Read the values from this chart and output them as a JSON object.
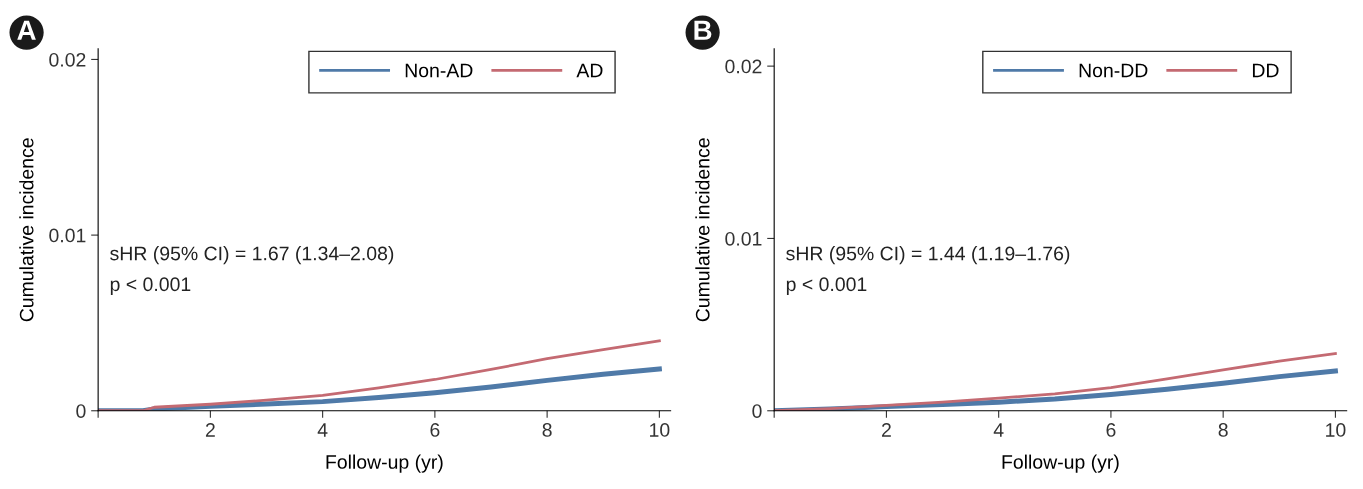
{
  "chart_data": [
    {
      "type": "line",
      "xlabel": "Follow-up (yr)",
      "ylabel": "Cumulative incidence",
      "annotations": [
        "A",
        "sHR (95% CI) = 1.67 (1.34–2.08)",
        "p < 0.001"
      ],
      "x": [
        0,
        0.8,
        1,
        2,
        3,
        4,
        5,
        6,
        7,
        8,
        9,
        10
      ],
      "series": [
        {
          "name": "Non-AD",
          "color": "#4f7aa8",
          "values": [
            0,
            0,
            0.0001,
            0.00026,
            0.00038,
            0.00052,
            0.00075,
            0.00102,
            0.00135,
            0.00173,
            0.00208,
            0.00238
          ]
        },
        {
          "name": "AD",
          "color": "#c46a72",
          "values": [
            0,
            0,
            0.0002,
            0.00037,
            0.0006,
            0.00087,
            0.0013,
            0.00178,
            0.00235,
            0.00297,
            0.00348,
            0.00398
          ]
        }
      ],
      "xlim": [
        0,
        10.2
      ],
      "ylim": [
        0,
        0.0206
      ],
      "xticks": [
        {
          "value": 0,
          "label": null
        },
        2,
        4,
        6,
        8,
        10
      ],
      "yticks": [
        0,
        0.01,
        0.02
      ],
      "legend": "top right",
      "grid": false,
      "line_style": "solid",
      "marker": "none"
    },
    {
      "type": "line",
      "xlabel": "Follow-up (yr)",
      "ylabel": "Cumulative incidence",
      "annotations": [
        "B",
        "sHR (95% CI) = 1.44 (1.19–1.76)",
        "p < 0.001"
      ],
      "x": [
        0,
        1,
        2,
        3,
        4,
        5,
        6,
        7,
        8,
        9,
        10
      ],
      "series": [
        {
          "name": "Non-DD",
          "color": "#4f7aa8",
          "values": [
            0,
            0.0001,
            0.00024,
            0.00036,
            0.0005,
            0.00068,
            0.00094,
            0.00125,
            0.0016,
            0.00198,
            0.00231
          ]
        },
        {
          "name": "DD",
          "color": "#c46a72",
          "values": [
            0,
            0.00012,
            0.00031,
            0.0005,
            0.00073,
            0.00098,
            0.00134,
            0.00185,
            0.00237,
            0.00288,
            0.00332
          ]
        }
      ],
      "xlim": [
        0,
        10.2
      ],
      "ylim": [
        0,
        0.021
      ],
      "xticks": [
        {
          "value": 0,
          "label": null
        },
        2,
        4,
        6,
        8,
        10
      ],
      "yticks": [
        0,
        0.01,
        0.02
      ],
      "legend": "top right",
      "grid": false,
      "line_style": "solid",
      "marker": "none"
    }
  ]
}
